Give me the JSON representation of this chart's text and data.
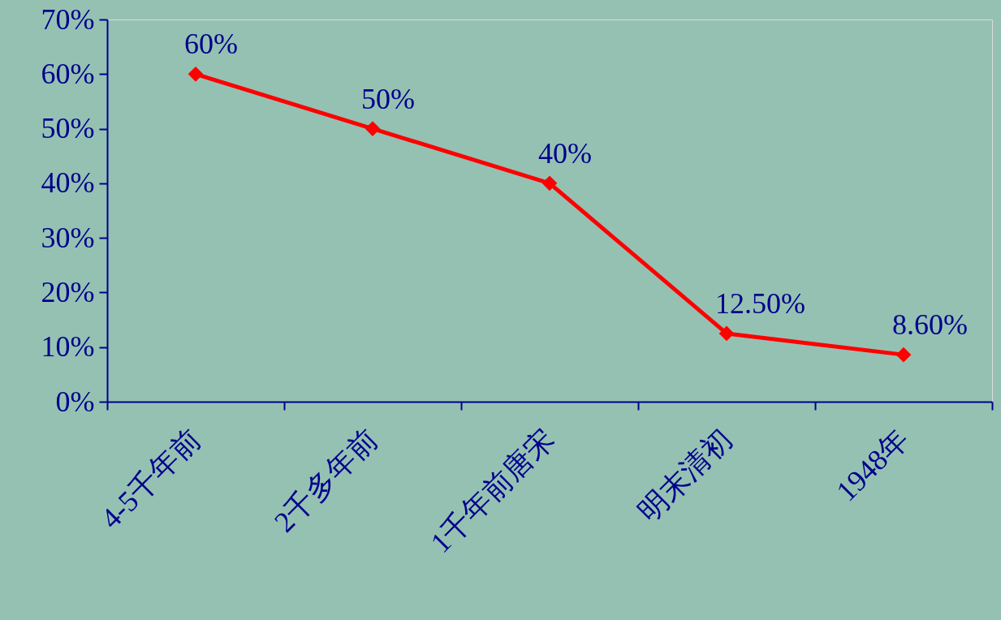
{
  "chart_data": {
    "type": "line",
    "categories": [
      "4-5千年前",
      "2千多年前",
      "1千年前唐宋",
      "明末清初",
      "1948年"
    ],
    "series": [
      {
        "color": "#ff0000",
        "values": [
          60,
          50,
          40,
          12.5,
          8.6
        ],
        "value_labels": [
          "60%",
          "50%",
          "40%",
          "12.50%",
          "8.60%"
        ]
      }
    ],
    "ylim": [
      0,
      70
    ],
    "yticks": [
      {
        "value": 0,
        "label": "0%"
      },
      {
        "value": 10,
        "label": "10%"
      },
      {
        "value": 20,
        "label": "20%"
      },
      {
        "value": 30,
        "label": "30%"
      },
      {
        "value": 40,
        "label": "40%"
      },
      {
        "value": 50,
        "label": "50%"
      },
      {
        "value": 60,
        "label": "60%"
      },
      {
        "value": 70,
        "label": "70%"
      }
    ],
    "marker": "diamond",
    "line_style": "solid",
    "grid": false
  }
}
